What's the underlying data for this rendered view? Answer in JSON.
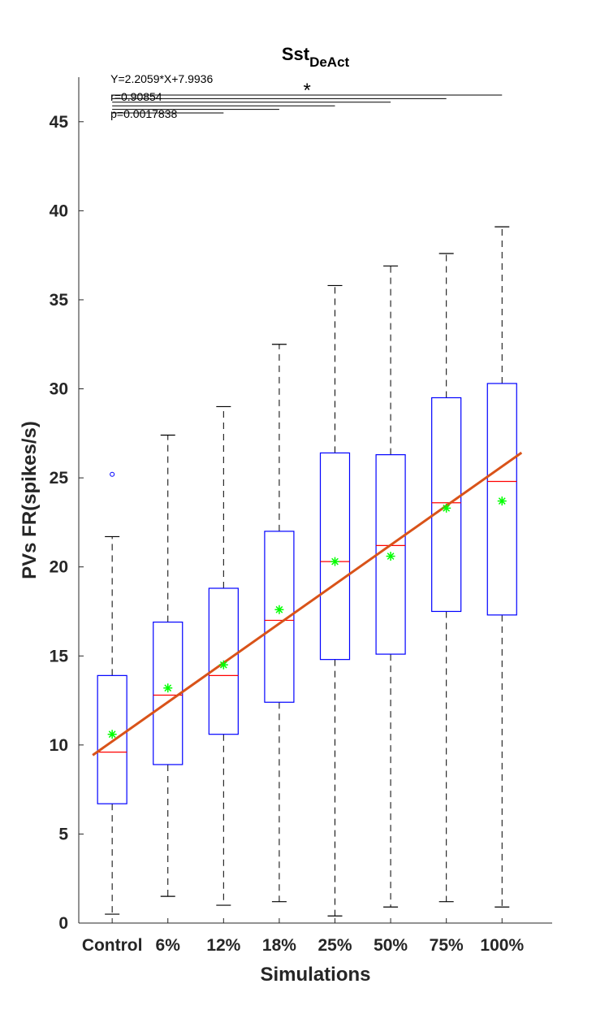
{
  "chart_data": {
    "type": "box",
    "title_main": "Sst",
    "title_sub": "DeAct",
    "xlabel": "Simulations",
    "ylabel": "PVs FR(spikes/s)",
    "ylim": [
      0,
      47.5
    ],
    "yticks": [
      0,
      5,
      10,
      15,
      20,
      25,
      30,
      35,
      40,
      45
    ],
    "grid": false,
    "categories": [
      "Control",
      "6%",
      "12%",
      "18%",
      "25%",
      "50%",
      "75%",
      "100%"
    ],
    "boxes": [
      {
        "whisker_low": 0.5,
        "q1": 6.7,
        "median": 9.6,
        "q3": 13.9,
        "whisker_high": 21.7,
        "mean": 10.6,
        "outliers": [
          25.2
        ]
      },
      {
        "whisker_low": 1.5,
        "q1": 8.9,
        "median": 12.8,
        "q3": 16.9,
        "whisker_high": 27.4,
        "mean": 13.2,
        "outliers": []
      },
      {
        "whisker_low": 1.0,
        "q1": 10.6,
        "median": 13.9,
        "q3": 18.8,
        "whisker_high": 29.0,
        "mean": 14.5,
        "outliers": []
      },
      {
        "whisker_low": 1.2,
        "q1": 12.4,
        "median": 17.0,
        "q3": 22.0,
        "whisker_high": 32.5,
        "mean": 17.6,
        "outliers": []
      },
      {
        "whisker_low": 0.4,
        "q1": 14.8,
        "median": 20.3,
        "q3": 26.4,
        "whisker_high": 35.8,
        "mean": 20.3,
        "outliers": []
      },
      {
        "whisker_low": 0.9,
        "q1": 15.1,
        "median": 21.2,
        "q3": 26.3,
        "whisker_high": 36.9,
        "mean": 20.6,
        "outliers": []
      },
      {
        "whisker_low": 1.2,
        "q1": 17.5,
        "median": 23.6,
        "q3": 29.5,
        "whisker_high": 37.6,
        "mean": 23.3,
        "outliers": []
      },
      {
        "whisker_low": 0.9,
        "q1": 17.3,
        "median": 24.8,
        "q3": 30.3,
        "whisker_high": 39.1,
        "mean": 23.7,
        "outliers": []
      }
    ],
    "fit_line": {
      "slope": 2.2059,
      "intercept": 7.9936
    },
    "annotations": {
      "equation": "Y=2.2059*X+7.9936",
      "r": "r=0.90854",
      "p": "p=0.0017838",
      "significance": "*"
    },
    "significance_bars": [
      {
        "from": 0,
        "to": 7,
        "y": 46.0
      },
      {
        "from": 0,
        "to": 6,
        "y": 45.8
      },
      {
        "from": 0,
        "to": 5,
        "y": 45.6
      },
      {
        "from": 0,
        "to": 4,
        "y": 45.4
      },
      {
        "from": 0,
        "to": 3,
        "y": 45.2
      },
      {
        "from": 0,
        "to": 2,
        "y": 45.0
      }
    ],
    "colors": {
      "box": "#0000ff",
      "median": "#ff0000",
      "whisker": "#000000",
      "mean_marker": "#00ff00",
      "fit_line": "#d95319",
      "axis": "#262626"
    }
  }
}
